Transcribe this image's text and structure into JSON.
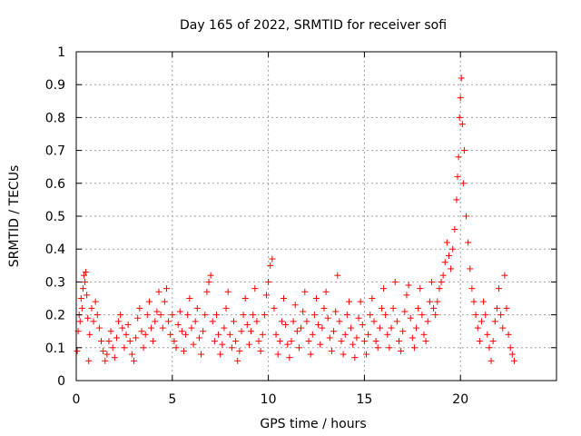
{
  "chart_data": {
    "type": "scatter",
    "title": "Day 165 of 2022, SRMTID for receiver sofi",
    "xlabel": "GPS time / hours",
    "ylabel": "SRMTID / TECUs",
    "xlim": [
      0,
      25
    ],
    "ylim": [
      0,
      1
    ],
    "xticks": [
      0,
      5,
      10,
      15,
      20
    ],
    "xtick_labels": [
      "0",
      "5",
      "10",
      "15",
      "20"
    ],
    "yticks": [
      0,
      0.1,
      0.2,
      0.3,
      0.4,
      0.5,
      0.6,
      0.7,
      0.8,
      0.9,
      1
    ],
    "ytick_labels": [
      "0",
      "0.1",
      "0.2",
      "0.3",
      "0.4",
      "0.5",
      "0.6",
      "0.7",
      "0.8",
      "0.9",
      "1"
    ],
    "grid": true,
    "marker": "plus",
    "marker_color": "#ff0000",
    "series": [
      {
        "name": "SRMTID",
        "x": [
          0.05,
          0.1,
          0.15,
          0.2,
          0.25,
          0.3,
          0.35,
          0.4,
          0.45,
          0.5,
          0.55,
          0.6,
          0.65,
          0.7,
          0.8,
          0.9,
          1.0,
          1.1,
          1.2,
          1.3,
          1.4,
          1.5,
          1.6,
          1.7,
          1.8,
          1.9,
          2.0,
          2.1,
          2.2,
          2.3,
          2.4,
          2.5,
          2.6,
          2.7,
          2.8,
          2.9,
          3.0,
          3.1,
          3.2,
          3.3,
          3.4,
          3.5,
          3.6,
          3.7,
          3.8,
          3.9,
          4.0,
          4.1,
          4.2,
          4.3,
          4.4,
          4.5,
          4.6,
          4.7,
          4.8,
          4.9,
          5.0,
          5.1,
          5.2,
          5.3,
          5.4,
          5.5,
          5.6,
          5.7,
          5.8,
          5.9,
          6.0,
          6.1,
          6.2,
          6.3,
          6.4,
          6.5,
          6.6,
          6.7,
          6.8,
          6.9,
          7.0,
          7.1,
          7.2,
          7.3,
          7.4,
          7.5,
          7.6,
          7.7,
          7.8,
          7.9,
          8.0,
          8.1,
          8.2,
          8.3,
          8.4,
          8.5,
          8.6,
          8.7,
          8.8,
          8.9,
          9.0,
          9.1,
          9.2,
          9.3,
          9.4,
          9.5,
          9.6,
          9.7,
          9.8,
          9.9,
          10.0,
          10.1,
          10.2,
          10.3,
          10.4,
          10.5,
          10.6,
          10.7,
          10.8,
          10.9,
          11.0,
          11.1,
          11.2,
          11.3,
          11.4,
          11.5,
          11.6,
          11.7,
          11.8,
          11.9,
          12.0,
          12.1,
          12.2,
          12.3,
          12.4,
          12.5,
          12.6,
          12.7,
          12.8,
          12.9,
          13.0,
          13.1,
          13.2,
          13.3,
          13.4,
          13.5,
          13.6,
          13.7,
          13.8,
          13.9,
          14.0,
          14.1,
          14.2,
          14.3,
          14.4,
          14.5,
          14.6,
          14.7,
          14.8,
          14.9,
          15.0,
          15.1,
          15.2,
          15.3,
          15.4,
          15.5,
          15.6,
          15.7,
          15.8,
          15.9,
          16.0,
          16.1,
          16.2,
          16.3,
          16.4,
          16.5,
          16.6,
          16.7,
          16.8,
          16.9,
          17.0,
          17.1,
          17.2,
          17.3,
          17.4,
          17.5,
          17.6,
          17.7,
          17.8,
          17.9,
          18.0,
          18.1,
          18.2,
          18.3,
          18.4,
          18.5,
          18.6,
          18.7,
          18.8,
          18.9,
          19.0,
          19.1,
          19.2,
          19.3,
          19.4,
          19.5,
          19.6,
          19.7,
          19.8,
          19.85,
          19.9,
          19.95,
          20.0,
          20.05,
          20.1,
          20.15,
          20.2,
          20.3,
          20.4,
          20.5,
          20.6,
          20.7,
          20.8,
          20.9,
          21.0,
          21.1,
          21.2,
          21.3,
          21.4,
          21.5,
          21.6,
          21.7,
          21.8,
          21.9,
          22.0,
          22.1,
          22.2,
          22.3,
          22.4,
          22.5,
          22.6,
          22.7,
          22.8
        ],
        "y": [
          0.09,
          0.15,
          0.2,
          0.18,
          0.25,
          0.22,
          0.28,
          0.32,
          0.3,
          0.33,
          0.26,
          0.19,
          0.06,
          0.14,
          0.22,
          0.18,
          0.24,
          0.2,
          0.16,
          0.12,
          0.09,
          0.06,
          0.08,
          0.12,
          0.15,
          0.1,
          0.07,
          0.13,
          0.18,
          0.2,
          0.16,
          0.1,
          0.14,
          0.17,
          0.12,
          0.08,
          0.06,
          0.13,
          0.19,
          0.22,
          0.15,
          0.1,
          0.14,
          0.2,
          0.24,
          0.16,
          0.12,
          0.18,
          0.21,
          0.27,
          0.2,
          0.16,
          0.24,
          0.28,
          0.18,
          0.14,
          0.2,
          0.12,
          0.1,
          0.17,
          0.21,
          0.15,
          0.09,
          0.14,
          0.2,
          0.25,
          0.16,
          0.11,
          0.18,
          0.22,
          0.13,
          0.08,
          0.15,
          0.2,
          0.27,
          0.3,
          0.32,
          0.18,
          0.12,
          0.2,
          0.14,
          0.08,
          0.11,
          0.16,
          0.22,
          0.27,
          0.14,
          0.1,
          0.18,
          0.12,
          0.06,
          0.09,
          0.15,
          0.2,
          0.25,
          0.17,
          0.11,
          0.15,
          0.2,
          0.28,
          0.18,
          0.12,
          0.09,
          0.14,
          0.2,
          0.26,
          0.3,
          0.35,
          0.37,
          0.22,
          0.14,
          0.08,
          0.12,
          0.18,
          0.25,
          0.17,
          0.11,
          0.07,
          0.12,
          0.18,
          0.23,
          0.15,
          0.1,
          0.16,
          0.21,
          0.27,
          0.18,
          0.12,
          0.08,
          0.14,
          0.2,
          0.25,
          0.17,
          0.11,
          0.16,
          0.22,
          0.27,
          0.19,
          0.13,
          0.09,
          0.15,
          0.21,
          0.32,
          0.18,
          0.12,
          0.08,
          0.14,
          0.2,
          0.24,
          0.16,
          0.11,
          0.07,
          0.13,
          0.19,
          0.24,
          0.17,
          0.12,
          0.08,
          0.14,
          0.2,
          0.25,
          0.18,
          0.12,
          0.1,
          0.16,
          0.22,
          0.28,
          0.2,
          0.14,
          0.1,
          0.16,
          0.22,
          0.3,
          0.18,
          0.12,
          0.09,
          0.15,
          0.21,
          0.26,
          0.29,
          0.19,
          0.13,
          0.1,
          0.16,
          0.22,
          0.28,
          0.2,
          0.14,
          0.12,
          0.18,
          0.24,
          0.3,
          0.22,
          0.2,
          0.24,
          0.28,
          0.3,
          0.32,
          0.36,
          0.42,
          0.38,
          0.34,
          0.4,
          0.46,
          0.55,
          0.62,
          0.68,
          0.8,
          0.86,
          0.92,
          0.78,
          0.6,
          0.7,
          0.5,
          0.42,
          0.34,
          0.28,
          0.24,
          0.2,
          0.16,
          0.12,
          0.18,
          0.24,
          0.2,
          0.14,
          0.1,
          0.06,
          0.12,
          0.18,
          0.22,
          0.28,
          0.2,
          0.16,
          0.32,
          0.22,
          0.14,
          0.1,
          0.08,
          0.06
        ]
      }
    ]
  }
}
